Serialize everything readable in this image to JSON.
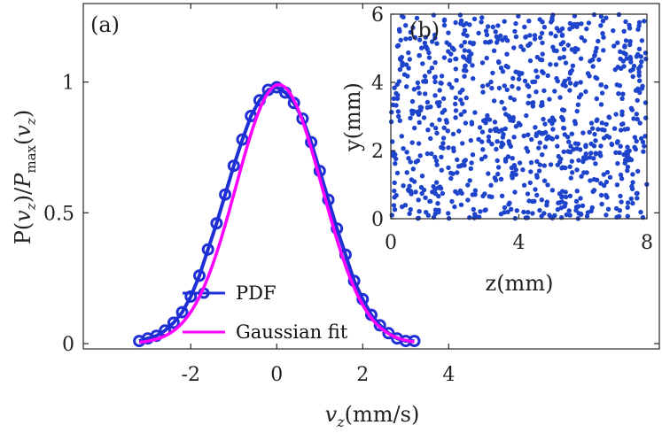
{
  "chart_data": [
    {
      "panel_label": "(a)",
      "type": "line",
      "xlabel": "v_z(mm/s)",
      "xlabel_parts": {
        "var": "v",
        "sub": "z",
        "unit": "(mm/s)"
      },
      "ylabel": "P(v_z)/P_max(v_z)",
      "ylabel_parts": {
        "p1": "P(",
        "v": "v",
        "sub": "z",
        "p2": ")/",
        "P": "P",
        "max": "max",
        "p3": "(",
        "v2": "v",
        "sub2": "z",
        "p4": ")"
      },
      "xlim": [
        -4.5,
        8.9
      ],
      "ylim": [
        -0.02,
        1.3
      ],
      "xticks": [
        -2,
        0,
        2,
        4
      ],
      "xtick_labels": [
        "-2",
        "0",
        "2",
        "4"
      ],
      "yticks": [
        0,
        0.5,
        1
      ],
      "ytick_labels": [
        "0",
        "0.5",
        "1"
      ],
      "legend": {
        "position": "lower-center",
        "entries": [
          "PDF",
          "Gaussian fit"
        ]
      },
      "series": [
        {
          "name": "PDF",
          "style": "line-with-circles",
          "color": "#1f2fd6",
          "x": [
            -3.2,
            -3.0,
            -2.8,
            -2.6,
            -2.4,
            -2.2,
            -2.0,
            -1.8,
            -1.6,
            -1.4,
            -1.2,
            -1.0,
            -0.8,
            -0.6,
            -0.4,
            -0.2,
            0.0,
            0.2,
            0.4,
            0.6,
            0.8,
            1.0,
            1.2,
            1.4,
            1.6,
            1.8,
            2.0,
            2.2,
            2.4,
            2.6,
            2.8,
            3.0,
            3.2
          ],
          "y": [
            0.01,
            0.02,
            0.03,
            0.05,
            0.08,
            0.12,
            0.18,
            0.26,
            0.36,
            0.46,
            0.57,
            0.68,
            0.78,
            0.87,
            0.93,
            0.97,
            0.98,
            0.96,
            0.92,
            0.86,
            0.77,
            0.66,
            0.55,
            0.44,
            0.34,
            0.24,
            0.17,
            0.11,
            0.07,
            0.04,
            0.02,
            0.01,
            0.01
          ]
        },
        {
          "name": "Gaussian fit",
          "style": "line",
          "color": "#ff00ff",
          "mu": 0.05,
          "sigma": 1.0,
          "amplitude": 0.99,
          "x_range": [
            -3.2,
            3.2
          ]
        }
      ]
    },
    {
      "panel_label": "(b)",
      "type": "scatter",
      "xlabel": "z(mm)",
      "ylabel": "y(mm)",
      "xlim": [
        0,
        8
      ],
      "ylim": [
        0,
        6
      ],
      "xticks": [
        0,
        4,
        8
      ],
      "xtick_labels": [
        "0",
        "4",
        "8"
      ],
      "yticks": [
        0,
        2,
        4,
        6
      ],
      "ytick_labels": [
        "0",
        "2",
        "4",
        "6"
      ],
      "marker_color": "#1f44cc",
      "point_count": 900,
      "distribution": "uniform random over the full domain"
    }
  ]
}
